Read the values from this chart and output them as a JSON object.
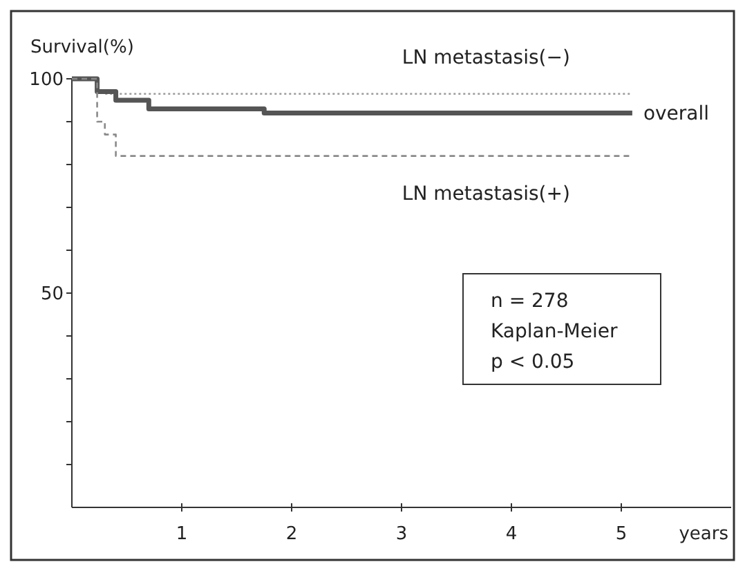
{
  "chart_data": {
    "type": "step",
    "xlabel": "years",
    "ylabel": "Survival(%)",
    "xlim": [
      0,
      6
    ],
    "xticks": [
      1,
      2,
      3,
      4,
      5
    ],
    "ylim": [
      0,
      100
    ],
    "yticks": [
      {
        "value": 10,
        "label": null
      },
      {
        "value": 20,
        "label": null
      },
      {
        "value": 30,
        "label": null
      },
      {
        "value": 40,
        "label": null
      },
      50,
      {
        "value": 60,
        "label": null
      },
      {
        "value": 70,
        "label": null
      },
      {
        "value": 80,
        "label": null
      },
      {
        "value": 90,
        "label": null
      },
      100
    ],
    "grid": false,
    "series": [
      {
        "name": "LN  metastasis(−)",
        "color": "#9a9a9a",
        "line_style": "dotted",
        "x": [
          0,
          0.23,
          0.3,
          5.1
        ],
        "values": [
          100,
          97,
          96.5,
          96.5
        ]
      },
      {
        "name": "overall",
        "color": "#555555",
        "line_style": "solid",
        "x": [
          0,
          0.23,
          0.4,
          0.7,
          1.75,
          5.1
        ],
        "values": [
          100,
          97,
          95,
          93,
          92,
          92
        ]
      },
      {
        "name": "LN  metastasis(+)",
        "color": "#8a8a8a",
        "line_style": "dashed",
        "x": [
          0,
          0.23,
          0.3,
          0.4,
          5.1
        ],
        "values": [
          100,
          90,
          87,
          82,
          82
        ]
      }
    ],
    "annotations": [
      "n = 278",
      "Kaplan-Meier",
      "p < 0.05"
    ]
  }
}
